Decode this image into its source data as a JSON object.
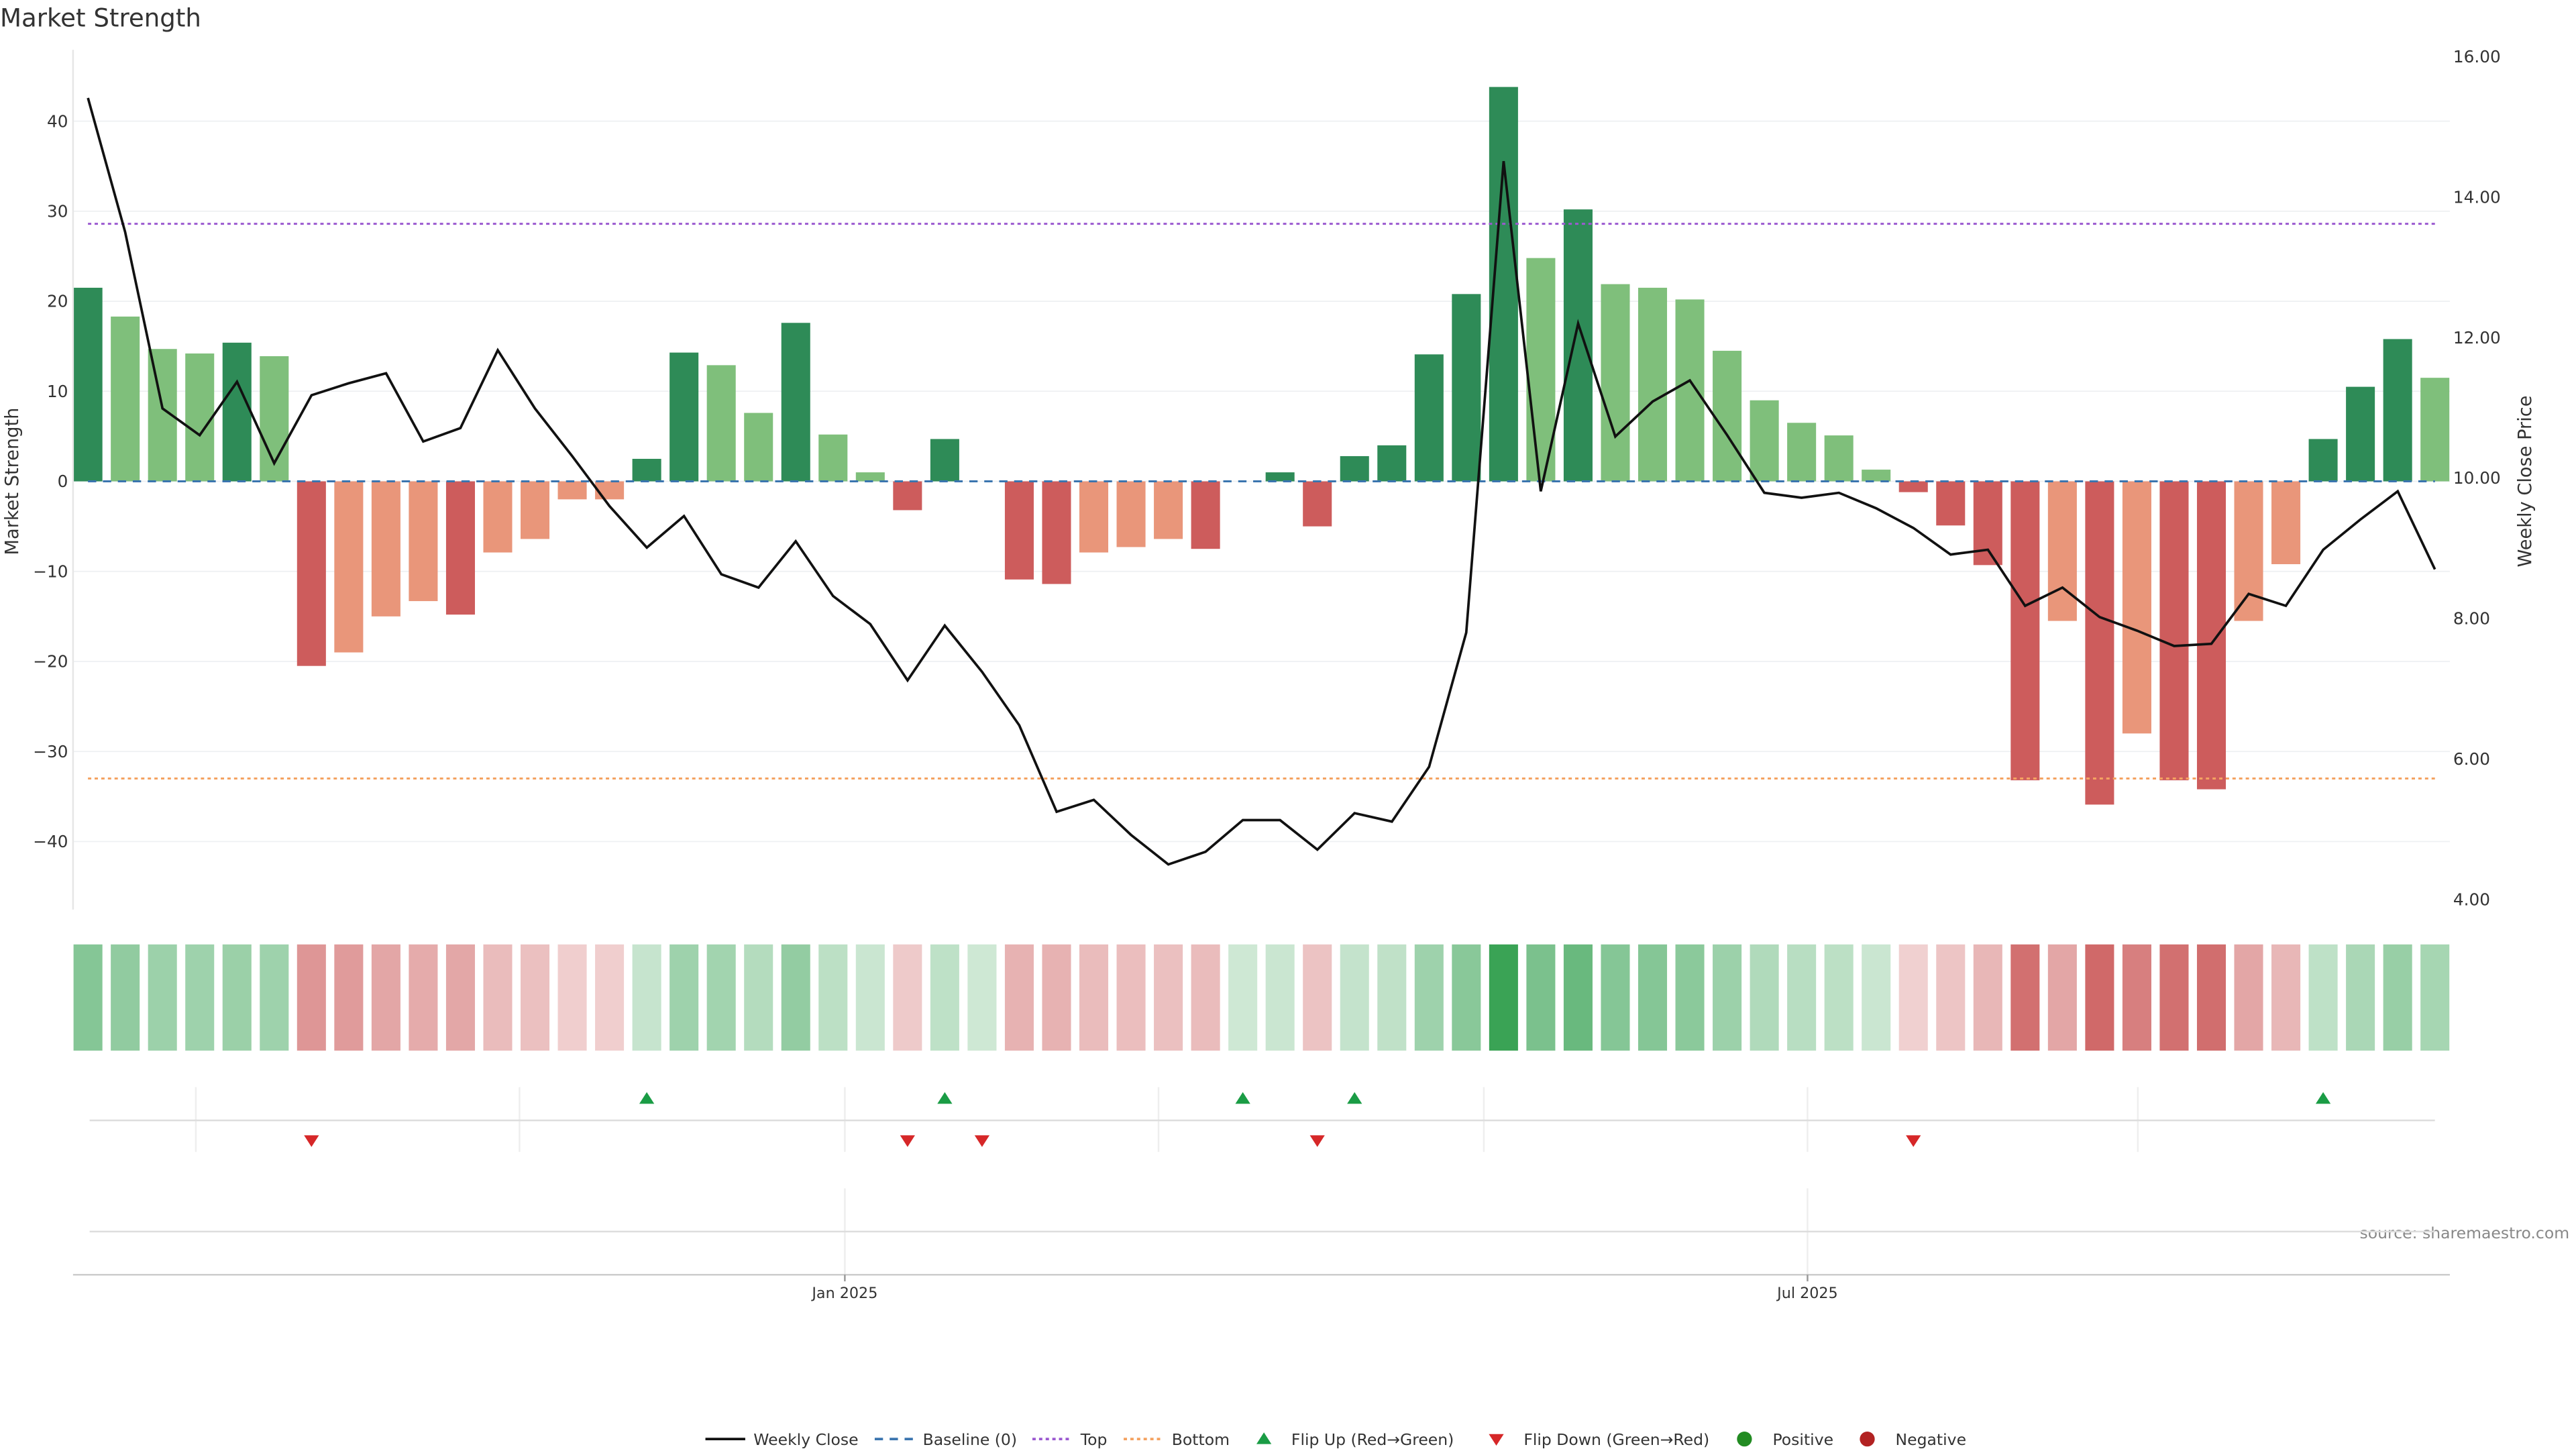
{
  "chart_data": {
    "type": "bar",
    "title": "Market Strength",
    "ylabel": "Market Strength",
    "y2label": "Weekly Close Price",
    "ylim": [
      -48,
      48
    ],
    "y2lim": [
      4,
      16
    ],
    "yticks": [
      40,
      30,
      20,
      10,
      0,
      -10,
      -20,
      -30,
      -40
    ],
    "ytick_labels": [
      "40",
      "30",
      "20",
      "10",
      "0",
      "−10",
      "−20",
      "−30",
      "−40"
    ],
    "y2ticks": [
      16,
      14,
      12,
      10,
      8,
      6,
      4
    ],
    "y2tick_labels": [
      "16.00",
      "14.00",
      "12.00",
      "10.00",
      "8.00",
      "6.00",
      "4.00"
    ],
    "xtick_labels": [
      "Jan 2025",
      "Jul 2025"
    ],
    "xtick_index": [
      21.2,
      47.0
    ],
    "top_level": 28.6,
    "bottom_level": -33,
    "source": "source: sharemaestro.com",
    "colors": {
      "strong_pos": "#2e8b57",
      "weak_pos": "#7fbf7b",
      "strong_neg": "#cd5c5c",
      "weak_neg": "#e9967a",
      "line": "#111111",
      "baseline": "#3b75af",
      "top": "#9b59d0",
      "bottom": "#f4a261",
      "flip_up": "#1a9c45",
      "flip_down": "#d62728"
    },
    "strength": [
      21.5,
      18.3,
      14.7,
      14.2,
      15.4,
      13.9,
      -20.5,
      -19,
      -15,
      -13.3,
      -14.8,
      -7.9,
      -6.4,
      -2,
      -2,
      2.5,
      14.3,
      12.9,
      7.6,
      17.6,
      5.2,
      1,
      -3.2,
      4.7,
      0,
      -10.9,
      -11.4,
      -7.9,
      -7.3,
      -6.4,
      -7.5,
      0,
      1,
      -5,
      2.8,
      4,
      14.1,
      20.8,
      43.8,
      24.8,
      30.2,
      21.9,
      21.5,
      20.2,
      14.5,
      9,
      6.5,
      5.1,
      1.3,
      -1.2,
      -4.9,
      -9.3,
      -33.2,
      -15.5,
      -35.9,
      -28,
      -33.2,
      -34.2,
      -15.5,
      -9.2,
      4.7,
      10.5,
      15.8,
      11.5
    ],
    "strong": [
      1,
      0,
      0,
      0,
      1,
      0,
      1,
      0,
      0,
      0,
      1,
      0,
      0,
      0,
      0,
      1,
      1,
      0,
      0,
      1,
      0,
      0,
      1,
      1,
      0,
      1,
      1,
      0,
      0,
      0,
      1,
      0,
      1,
      1,
      1,
      1,
      1,
      1,
      1,
      0,
      1,
      0,
      0,
      0,
      0,
      0,
      0,
      0,
      0,
      1,
      1,
      1,
      1,
      0,
      1,
      0,
      1,
      1,
      0,
      0,
      1,
      1,
      1,
      0
    ],
    "weekly_close": [
      15.41,
      13.5,
      10.99,
      10.61,
      11.37,
      10.21,
      11.18,
      11.35,
      11.49,
      10.52,
      10.71,
      11.82,
      10.99,
      10.31,
      9.6,
      9.01,
      9.46,
      8.63,
      8.44,
      9.1,
      8.32,
      7.92,
      7.12,
      7.9,
      7.24,
      6.48,
      5.25,
      5.42,
      4.92,
      4.5,
      4.68,
      5.13,
      5.13,
      4.71,
      5.23,
      5.11,
      5.89,
      7.8,
      14.51,
      9.81,
      12.2,
      10.59,
      11.09,
      11.39,
      10.61,
      9.79,
      9.72,
      9.79,
      9.57,
      9.29,
      8.91,
      8.98,
      8.18,
      8.44,
      8.02,
      7.83,
      7.61,
      7.64,
      8.35,
      8.18,
      8.98,
      9.41,
      9.81,
      8.7
    ],
    "flip_up_index": [
      15,
      23,
      31,
      34,
      60
    ],
    "flip_down_index": [
      6,
      22,
      24,
      33,
      49
    ],
    "legend": {
      "placement": "bottom-center",
      "items": [
        {
          "label": "Weekly Close",
          "kind": "line"
        },
        {
          "label": "Baseline (0)",
          "kind": "dash"
        },
        {
          "label": "Top",
          "kind": "dot-top"
        },
        {
          "label": "Bottom",
          "kind": "dot-bottom"
        },
        {
          "label": "Flip Up (Red→Green)",
          "kind": "up"
        },
        {
          "label": "Flip Down (Green→Red)",
          "kind": "down"
        },
        {
          "label": "Positive",
          "kind": "pos"
        },
        {
          "label": "Negative",
          "kind": "neg"
        }
      ]
    }
  }
}
